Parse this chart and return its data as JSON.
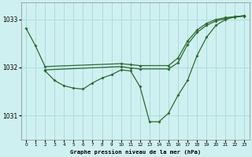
{
  "title": "Graphe pression niveau de la mer (hPa)",
  "bg_color": "#cff0f0",
  "grid_color": "#aadddd",
  "line_color": "#2d6a2d",
  "xlim": [
    -0.5,
    23.5
  ],
  "ylim": [
    1030.5,
    1033.35
  ],
  "yticks": [
    1031,
    1032,
    1033
  ],
  "xticks": [
    0,
    1,
    2,
    3,
    4,
    5,
    6,
    7,
    8,
    9,
    10,
    11,
    12,
    13,
    14,
    15,
    16,
    17,
    18,
    19,
    20,
    21,
    22,
    23
  ],
  "series": [
    {
      "x": [
        0,
        1,
        2,
        10,
        11,
        12,
        15,
        16,
        17,
        18,
        19,
        20,
        21,
        22,
        23
      ],
      "y": [
        1032.82,
        1032.45,
        1032.02,
        1032.08,
        1032.06,
        1032.04,
        1032.04,
        1032.2,
        1032.55,
        1032.78,
        1032.92,
        1033.0,
        1033.04,
        1033.06,
        1033.08
      ]
    },
    {
      "x": [
        2,
        10,
        11,
        12,
        15,
        16,
        17,
        18,
        19,
        20,
        21,
        22,
        23
      ],
      "y": [
        1031.95,
        1032.02,
        1031.99,
        1031.97,
        1031.97,
        1032.1,
        1032.48,
        1032.73,
        1032.88,
        1032.97,
        1033.02,
        1033.05,
        1033.07
      ]
    },
    {
      "x": [
        2,
        3,
        4,
        5,
        6,
        7,
        8,
        9,
        10,
        11,
        12,
        13,
        14,
        15,
        16,
        17,
        18,
        19,
        20,
        21,
        22,
        23
      ],
      "y": [
        1031.93,
        1031.73,
        1031.62,
        1031.57,
        1031.55,
        1031.68,
        1031.78,
        1031.85,
        1031.95,
        1031.93,
        1031.6,
        1030.87,
        1030.87,
        1031.05,
        1031.42,
        1031.73,
        1032.25,
        1032.63,
        1032.88,
        1033.0,
        1033.06,
        1033.08
      ]
    }
  ]
}
